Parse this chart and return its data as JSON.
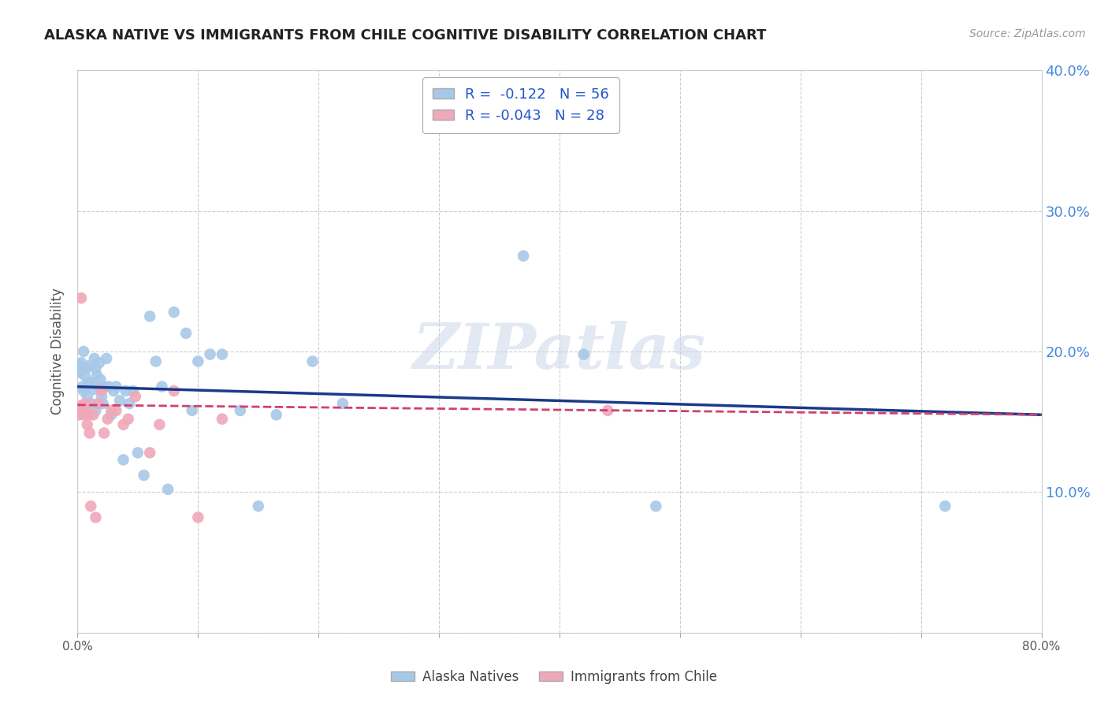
{
  "title": "ALASKA NATIVE VS IMMIGRANTS FROM CHILE COGNITIVE DISABILITY CORRELATION CHART",
  "source": "Source: ZipAtlas.com",
  "ylabel": "Cognitive Disability",
  "legend_label_blue": "Alaska Natives",
  "legend_label_pink": "Immigrants from Chile",
  "r_blue": -0.122,
  "n_blue": 56,
  "r_pink": -0.043,
  "n_pink": 28,
  "xlim": [
    0.0,
    0.8
  ],
  "ylim": [
    0.0,
    0.4
  ],
  "xticks": [
    0.0,
    0.1,
    0.2,
    0.3,
    0.4,
    0.5,
    0.6,
    0.7,
    0.8
  ],
  "yticks": [
    0.0,
    0.1,
    0.2,
    0.3,
    0.4
  ],
  "color_blue": "#a8c8e8",
  "color_pink": "#f0a8b8",
  "trendline_blue": "#1a3a8a",
  "trendline_pink": "#d04070",
  "background": "#ffffff",
  "grid_color": "#cccccc",
  "watermark": "ZIPatlas",
  "blue_points_x": [
    0.001,
    0.002,
    0.003,
    0.004,
    0.005,
    0.005,
    0.006,
    0.007,
    0.008,
    0.008,
    0.009,
    0.01,
    0.011,
    0.012,
    0.013,
    0.014,
    0.015,
    0.015,
    0.016,
    0.017,
    0.018,
    0.019,
    0.02,
    0.021,
    0.022,
    0.024,
    0.026,
    0.028,
    0.03,
    0.032,
    0.035,
    0.038,
    0.04,
    0.043,
    0.046,
    0.05,
    0.055,
    0.06,
    0.065,
    0.07,
    0.075,
    0.08,
    0.09,
    0.095,
    0.1,
    0.11,
    0.12,
    0.135,
    0.15,
    0.165,
    0.195,
    0.22,
    0.37,
    0.42,
    0.48,
    0.72
  ],
  "blue_points_y": [
    0.19,
    0.185,
    0.192,
    0.175,
    0.2,
    0.172,
    0.183,
    0.188,
    0.175,
    0.168,
    0.178,
    0.19,
    0.163,
    0.178,
    0.173,
    0.195,
    0.158,
    0.188,
    0.183,
    0.175,
    0.192,
    0.18,
    0.168,
    0.163,
    0.175,
    0.195,
    0.175,
    0.155,
    0.172,
    0.175,
    0.165,
    0.123,
    0.172,
    0.163,
    0.172,
    0.128,
    0.112,
    0.225,
    0.193,
    0.175,
    0.102,
    0.228,
    0.213,
    0.158,
    0.193,
    0.198,
    0.198,
    0.158,
    0.09,
    0.155,
    0.193,
    0.163,
    0.268,
    0.198,
    0.09,
    0.09
  ],
  "pink_points_x": [
    0.001,
    0.002,
    0.003,
    0.004,
    0.005,
    0.006,
    0.007,
    0.008,
    0.009,
    0.01,
    0.011,
    0.013,
    0.015,
    0.017,
    0.02,
    0.022,
    0.025,
    0.028,
    0.032,
    0.038,
    0.042,
    0.048,
    0.06,
    0.068,
    0.08,
    0.1,
    0.12,
    0.44
  ],
  "pink_points_y": [
    0.155,
    0.16,
    0.238,
    0.162,
    0.155,
    0.16,
    0.163,
    0.148,
    0.155,
    0.142,
    0.09,
    0.155,
    0.082,
    0.163,
    0.172,
    0.142,
    0.152,
    0.158,
    0.158,
    0.148,
    0.152,
    0.168,
    0.128,
    0.148,
    0.172,
    0.082,
    0.152,
    0.158
  ],
  "trendline_blue_x0": 0.0,
  "trendline_blue_y0": 0.175,
  "trendline_blue_x1": 0.8,
  "trendline_blue_y1": 0.155,
  "trendline_pink_x0": 0.0,
  "trendline_pink_y0": 0.162,
  "trendline_pink_x1": 0.8,
  "trendline_pink_y1": 0.155
}
